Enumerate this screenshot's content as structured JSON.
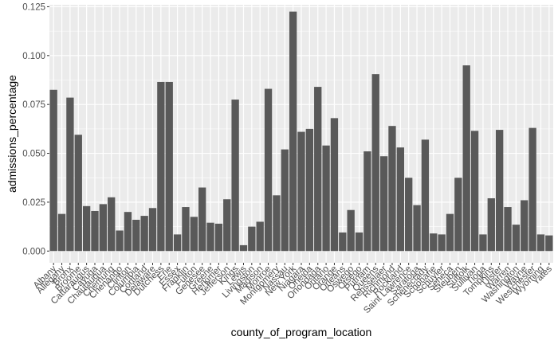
{
  "chart_data": {
    "type": "bar",
    "xlabel": "county_of_program_location",
    "ylabel": "admissions_percentage",
    "ylim": [
      -0.006,
      0.126
    ],
    "yticks": [
      0.0,
      0.025,
      0.05,
      0.075,
      0.1,
      0.125
    ],
    "ytick_labels": [
      "0.000",
      "0.025",
      "0.050",
      "0.075",
      "0.100",
      "0.125"
    ],
    "grid": true,
    "legend": "none",
    "panel_background": "#ebebeb",
    "gridline_color": "#ffffff",
    "bar_color": "#595959",
    "categories": [
      "Albany",
      "Allegany",
      "Bronx",
      "Broome",
      "Cattaraugus",
      "Cayuga",
      "Chautauqua",
      "Chemung",
      "Chenango",
      "Clinton",
      "Columbia",
      "Cortland",
      "Delaware",
      "Dutchess",
      "Erie",
      "Essex",
      "Franklin",
      "Fulton",
      "Genesee",
      "Greene",
      "Herkimer",
      "Jefferson",
      "Kings",
      "Lewis",
      "Livingston",
      "Madison",
      "Monroe",
      "Montgomery",
      "Nassau",
      "New York",
      "Niagara",
      "Oneida",
      "Onondaga",
      "Ontario",
      "Orange",
      "Orleans",
      "Oswego",
      "Otsego",
      "Putnam",
      "Queens",
      "Rensselaer",
      "Richmond",
      "Rockland",
      "Saint Lawrence",
      "Saratoga",
      "Schenectady",
      "Schoharie",
      "Schuyler",
      "Seneca",
      "Steuben",
      "Suffolk",
      "Sullivan",
      "Tioga",
      "Tompkins",
      "Ulster",
      "Warren",
      "Washington",
      "Wayne",
      "Westchester",
      "Wyoming",
      "Yates"
    ],
    "values": [
      0.0825,
      0.019,
      0.0785,
      0.0595,
      0.023,
      0.0205,
      0.024,
      0.0275,
      0.0105,
      0.02,
      0.016,
      0.018,
      0.022,
      0.0865,
      0.0865,
      0.0085,
      0.0225,
      0.0175,
      0.0325,
      0.0145,
      0.014,
      0.0265,
      0.0775,
      0.003,
      0.0125,
      0.015,
      0.083,
      0.0285,
      0.052,
      0.1225,
      0.061,
      0.0625,
      0.084,
      0.054,
      0.068,
      0.0095,
      0.021,
      0.0095,
      0.051,
      0.0905,
      0.0485,
      0.064,
      0.053,
      0.0375,
      0.0235,
      0.057,
      0.009,
      0.0085,
      0.019,
      0.0375,
      0.095,
      0.0615,
      0.0085,
      0.027,
      0.062,
      0.0225,
      0.0135,
      0.026,
      0.063,
      0.0085,
      0.008
    ]
  }
}
